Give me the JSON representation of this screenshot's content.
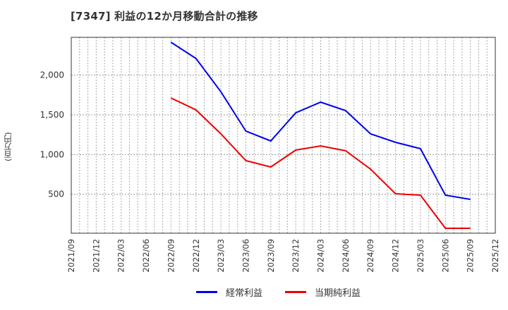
{
  "title": "[7347]  利益の12か月移動合計の推移",
  "y_axis_label": "(百万円)",
  "legend": [
    {
      "label": "経常利益",
      "color": "#0000ee"
    },
    {
      "label": "当期純利益",
      "color": "#ee0000"
    }
  ],
  "chart_data": {
    "type": "line",
    "title": "[7347]  利益の12か月移動合計の推移",
    "xlabel": "",
    "ylabel": "(百万円)",
    "x_ticks": [
      "2021/09",
      "2021/12",
      "2022/03",
      "2022/06",
      "2022/09",
      "2022/12",
      "2023/03",
      "2023/06",
      "2023/09",
      "2023/12",
      "2024/03",
      "2024/06",
      "2024/09",
      "2024/12",
      "2025/03",
      "2025/06",
      "2025/09",
      "2025/12"
    ],
    "y_ticks": [
      500,
      1000,
      1500,
      2000
    ],
    "y_tick_labels": [
      "500",
      "1,000",
      "1,500",
      "2,000"
    ],
    "ylim": [
      0,
      2470
    ],
    "grid": true,
    "legend_position": "bottom",
    "x": [
      "2022/09",
      "2022/12",
      "2023/03",
      "2023/06",
      "2023/09",
      "2023/12",
      "2024/03",
      "2024/06",
      "2024/09",
      "2024/12",
      "2025/03",
      "2025/06",
      "2025/09"
    ],
    "series": [
      {
        "name": "経常利益",
        "color": "#0000ee",
        "values": [
          2414,
          2210,
          1790,
          1295,
          1171,
          1526,
          1660,
          1553,
          1260,
          1154,
          1074,
          488,
          435
        ]
      },
      {
        "name": "当期純利益",
        "color": "#ee0000",
        "values": [
          1712,
          1562,
          1260,
          923,
          843,
          1056,
          1109,
          1047,
          816,
          506,
          488,
          71,
          71
        ]
      }
    ]
  }
}
